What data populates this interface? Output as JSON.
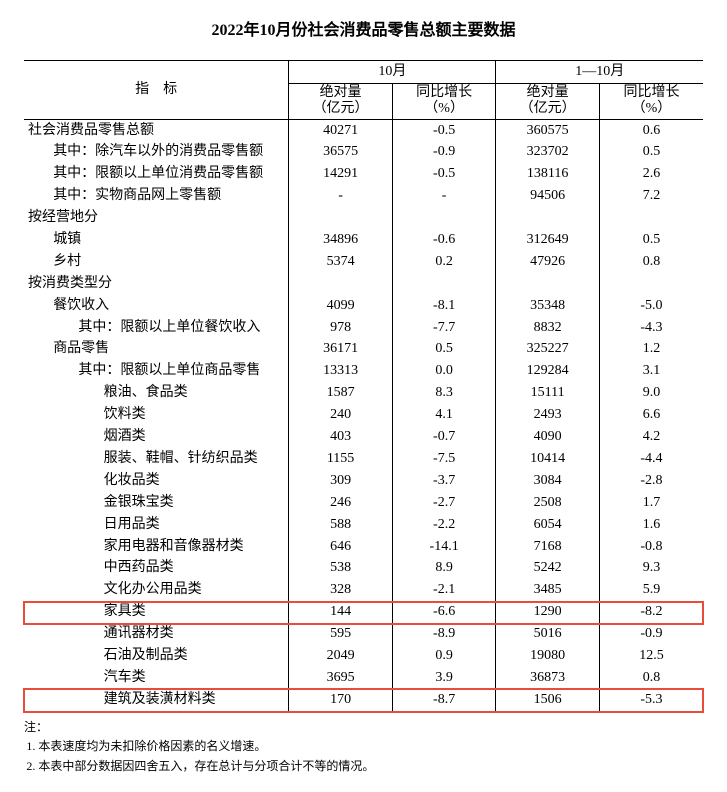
{
  "title": "2022年10月份社会消费品零售总额主要数据",
  "colors": {
    "highlight_border": "#e74c3c",
    "text": "#000000",
    "background": "#ffffff",
    "rule": "#000000"
  },
  "header": {
    "indicator": "指　标",
    "oct": "10月",
    "jan_oct": "1—10月",
    "abs_label_line1": "绝对量",
    "abs_label_line2": "（亿元）",
    "yoy_label_line1": "同比增长",
    "yoy_label_line2": "（%）"
  },
  "rows": [
    {
      "label": "社会消费品零售总额",
      "indent": 0,
      "oct_abs": "40271",
      "oct_yoy": "-0.5",
      "ytd_abs": "360575",
      "ytd_yoy": "0.6"
    },
    {
      "label": "其中：除汽车以外的消费品零售额",
      "indent": 1,
      "oct_abs": "36575",
      "oct_yoy": "-0.9",
      "ytd_abs": "323702",
      "ytd_yoy": "0.5"
    },
    {
      "label": "其中：限额以上单位消费品零售额",
      "indent": 1,
      "oct_abs": "14291",
      "oct_yoy": "-0.5",
      "ytd_abs": "138116",
      "ytd_yoy": "2.6"
    },
    {
      "label": "其中：实物商品网上零售额",
      "indent": 1,
      "oct_abs": "-",
      "oct_yoy": "-",
      "ytd_abs": "94506",
      "ytd_yoy": "7.2"
    },
    {
      "label": "按经营地分",
      "indent": 0,
      "oct_abs": "",
      "oct_yoy": "",
      "ytd_abs": "",
      "ytd_yoy": ""
    },
    {
      "label": "城镇",
      "indent": 1,
      "oct_abs": "34896",
      "oct_yoy": "-0.6",
      "ytd_abs": "312649",
      "ytd_yoy": "0.5"
    },
    {
      "label": "乡村",
      "indent": 1,
      "oct_abs": "5374",
      "oct_yoy": "0.2",
      "ytd_abs": "47926",
      "ytd_yoy": "0.8"
    },
    {
      "label": "按消费类型分",
      "indent": 0,
      "oct_abs": "",
      "oct_yoy": "",
      "ytd_abs": "",
      "ytd_yoy": ""
    },
    {
      "label": "餐饮收入",
      "indent": 1,
      "oct_abs": "4099",
      "oct_yoy": "-8.1",
      "ytd_abs": "35348",
      "ytd_yoy": "-5.0"
    },
    {
      "label": "其中：限额以上单位餐饮收入",
      "indent": 2,
      "oct_abs": "978",
      "oct_yoy": "-7.7",
      "ytd_abs": "8832",
      "ytd_yoy": "-4.3"
    },
    {
      "label": "商品零售",
      "indent": 1,
      "oct_abs": "36171",
      "oct_yoy": "0.5",
      "ytd_abs": "325227",
      "ytd_yoy": "1.2"
    },
    {
      "label": "其中：限额以上单位商品零售",
      "indent": 2,
      "oct_abs": "13313",
      "oct_yoy": "0.0",
      "ytd_abs": "129284",
      "ytd_yoy": "3.1"
    },
    {
      "label": "粮油、食品类",
      "indent": 3,
      "oct_abs": "1587",
      "oct_yoy": "8.3",
      "ytd_abs": "15111",
      "ytd_yoy": "9.0"
    },
    {
      "label": "饮料类",
      "indent": 3,
      "oct_abs": "240",
      "oct_yoy": "4.1",
      "ytd_abs": "2493",
      "ytd_yoy": "6.6"
    },
    {
      "label": "烟酒类",
      "indent": 3,
      "oct_abs": "403",
      "oct_yoy": "-0.7",
      "ytd_abs": "4090",
      "ytd_yoy": "4.2"
    },
    {
      "label": "服装、鞋帽、针纺织品类",
      "indent": 3,
      "oct_abs": "1155",
      "oct_yoy": "-7.5",
      "ytd_abs": "10414",
      "ytd_yoy": "-4.4"
    },
    {
      "label": "化妆品类",
      "indent": 3,
      "oct_abs": "309",
      "oct_yoy": "-3.7",
      "ytd_abs": "3084",
      "ytd_yoy": "-2.8"
    },
    {
      "label": "金银珠宝类",
      "indent": 3,
      "oct_abs": "246",
      "oct_yoy": "-2.7",
      "ytd_abs": "2508",
      "ytd_yoy": "1.7"
    },
    {
      "label": "日用品类",
      "indent": 3,
      "oct_abs": "588",
      "oct_yoy": "-2.2",
      "ytd_abs": "6054",
      "ytd_yoy": "1.6"
    },
    {
      "label": "家用电器和音像器材类",
      "indent": 3,
      "oct_abs": "646",
      "oct_yoy": "-14.1",
      "ytd_abs": "7168",
      "ytd_yoy": "-0.8"
    },
    {
      "label": "中西药品类",
      "indent": 3,
      "oct_abs": "538",
      "oct_yoy": "8.9",
      "ytd_abs": "5242",
      "ytd_yoy": "9.3"
    },
    {
      "label": "文化办公用品类",
      "indent": 3,
      "oct_abs": "328",
      "oct_yoy": "-2.1",
      "ytd_abs": "3485",
      "ytd_yoy": "5.9"
    },
    {
      "label": "家具类",
      "indent": 3,
      "oct_abs": "144",
      "oct_yoy": "-6.6",
      "ytd_abs": "1290",
      "ytd_yoy": "-8.2",
      "highlight": true
    },
    {
      "label": "通讯器材类",
      "indent": 3,
      "oct_abs": "595",
      "oct_yoy": "-8.9",
      "ytd_abs": "5016",
      "ytd_yoy": "-0.9"
    },
    {
      "label": "石油及制品类",
      "indent": 3,
      "oct_abs": "2049",
      "oct_yoy": "0.9",
      "ytd_abs": "19080",
      "ytd_yoy": "12.5"
    },
    {
      "label": "汽车类",
      "indent": 3,
      "oct_abs": "3695",
      "oct_yoy": "3.9",
      "ytd_abs": "36873",
      "ytd_yoy": "0.8"
    },
    {
      "label": "建筑及装潢材料类",
      "indent": 3,
      "oct_abs": "170",
      "oct_yoy": "-8.7",
      "ytd_abs": "1506",
      "ytd_yoy": "-5.3",
      "highlight": true
    }
  ],
  "notes": {
    "heading": "注：",
    "items": [
      "本表速度均为未扣除价格因素的名义增速。",
      "本表中部分数据因四舍五入，存在总计与分项合计不等的情况。"
    ]
  }
}
